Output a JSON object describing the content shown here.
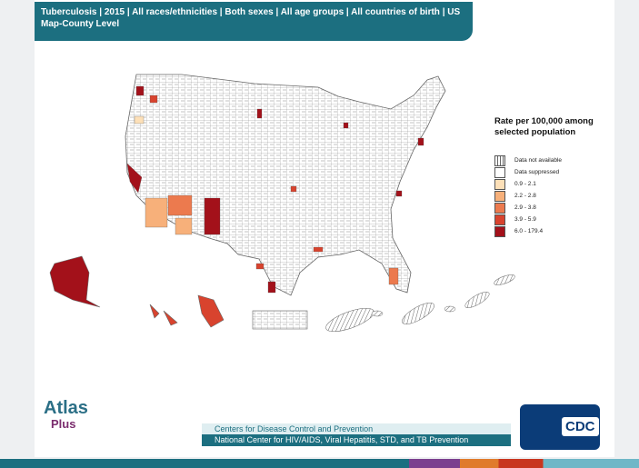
{
  "header": {
    "title": "Tuberculosis | 2015 | All races/ethnicities | Both sexes | All age groups | All countries of birth | US",
    "subtitle": "Map-County Level"
  },
  "legend": {
    "title": "Rate per 100,000 among selected population",
    "items": [
      {
        "label": "Data not available",
        "fill": "hatch"
      },
      {
        "label": "Data suppressed",
        "fill": "#ffffff"
      },
      {
        "label": "0.9 - 2.1",
        "fill": "#fde0b8"
      },
      {
        "label": "2.2 - 2.8",
        "fill": "#f7b07a"
      },
      {
        "label": "2.9 - 3.8",
        "fill": "#ec7a4e"
      },
      {
        "label": "3.9 - 5.9",
        "fill": "#d8432e"
      },
      {
        "label": "6.0 - 179.4",
        "fill": "#a3111a"
      }
    ]
  },
  "logo": {
    "name": "Atlas",
    "suffix": "Plus"
  },
  "footer": {
    "line1": "Centers for Disease Control and Prevention",
    "line2": "National Center for HIV/AIDS, Viral Hepatitis, STD, and TB Prevention"
  },
  "cdc_logo": "CDC"
}
